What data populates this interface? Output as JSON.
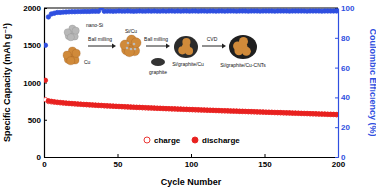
{
  "chart_data": {
    "type": "scatter",
    "x_label": "Cycle Number",
    "y_label": "Specific Capacity (mAh g⁻¹)",
    "y2_label": "Coulombic Efficiency (%)",
    "xlim": [
      0,
      200
    ],
    "xticks": [
      0,
      50,
      100,
      150,
      200
    ],
    "ylim": [
      0,
      2000
    ],
    "yticks": [
      0,
      500,
      1000,
      1500,
      2000
    ],
    "y2lim": [
      0,
      100
    ],
    "y2ticks": [
      0,
      20,
      40,
      60,
      80,
      100
    ],
    "legend": "lower center",
    "annotations": [
      "nano-Si",
      "Cu",
      "Ball milling",
      "Si/Cu",
      "Ball milling",
      "graphite",
      "Si/graphite/Cu",
      "CVD",
      "Si/graphite/Cu-CNTs"
    ],
    "x": [
      1,
      3,
      5,
      7,
      9,
      11,
      13,
      15,
      17,
      19,
      21,
      23,
      25,
      27,
      29,
      31,
      33,
      35,
      37,
      39,
      41,
      43,
      45,
      47,
      49,
      51,
      53,
      55,
      57,
      59,
      61,
      63,
      65,
      67,
      69,
      71,
      73,
      75,
      77,
      79,
      81,
      83,
      85,
      87,
      89,
      91,
      93,
      95,
      97,
      99,
      101,
      103,
      105,
      107,
      109,
      111,
      113,
      115,
      117,
      119,
      121,
      123,
      125,
      127,
      129,
      131,
      133,
      135,
      137,
      139,
      141,
      143,
      145,
      147,
      149,
      151,
      153,
      155,
      157,
      159,
      161,
      163,
      165,
      167,
      169,
      171,
      173,
      175,
      177,
      179,
      181,
      183,
      185,
      187,
      189,
      191,
      193,
      195,
      197,
      199
    ],
    "series": [
      {
        "name": "charge",
        "color": "#e8211f",
        "marker": "circle-open",
        "values": [
          770,
          745,
          740,
          735,
          731,
          727,
          723,
          720,
          717,
          714,
          711,
          708,
          706,
          703,
          701,
          698,
          696,
          693,
          691,
          689,
          686,
          684,
          682,
          680,
          678,
          676,
          674,
          672,
          670,
          668,
          666,
          664,
          663,
          661,
          659,
          657,
          656,
          654,
          652,
          651,
          649,
          647,
          646,
          644,
          643,
          641,
          640,
          638,
          637,
          635,
          634,
          632,
          631,
          629,
          628,
          626,
          625,
          624,
          622,
          621,
          619,
          618,
          617,
          615,
          614,
          613,
          611,
          610,
          609,
          607,
          606,
          605,
          603,
          602,
          601,
          599,
          598,
          597,
          595,
          594,
          593,
          591,
          590,
          589,
          587,
          586,
          585,
          583,
          582,
          581,
          579,
          578,
          577,
          575,
          574,
          573,
          571,
          570,
          569,
          567
        ]
      },
      {
        "name": "discharge",
        "color": "#e8211f",
        "marker": "circle",
        "values": [
          1030,
          755,
          748,
          742,
          737,
          733,
          729,
          725,
          722,
          719,
          716,
          713,
          710,
          707,
          705,
          702,
          700,
          697,
          695,
          693,
          690,
          688,
          686,
          684,
          682,
          680,
          678,
          676,
          674,
          672,
          670,
          668,
          667,
          665,
          663,
          661,
          660,
          658,
          656,
          655,
          653,
          651,
          650,
          648,
          647,
          645,
          644,
          642,
          641,
          639,
          638,
          636,
          635,
          633,
          632,
          630,
          629,
          628,
          626,
          625,
          623,
          622,
          621,
          619,
          618,
          617,
          615,
          614,
          613,
          611,
          610,
          609,
          607,
          606,
          605,
          603,
          602,
          601,
          599,
          598,
          597,
          595,
          594,
          593,
          591,
          590,
          589,
          587,
          586,
          585,
          583,
          582,
          581,
          579,
          578,
          577,
          575,
          574,
          573,
          571
        ]
      },
      {
        "color": "#2f4fe0",
        "marker": "circle",
        "axis": "y2",
        "values": [
          75,
          94,
          96,
          96.5,
          97,
          97,
          97.2,
          97.3,
          97.4,
          97.5,
          97.5,
          97.6,
          97.6,
          97.7,
          97.7,
          97.7,
          97.8,
          97.8,
          97.8,
          100,
          97.8,
          97.9,
          97.9,
          97.8,
          97.9,
          98,
          97.9,
          97.9,
          98,
          97.9,
          97.8,
          97.9,
          98,
          97.9,
          97.9,
          98,
          97.9,
          98,
          97.9,
          97.9,
          98,
          97.9,
          98,
          98,
          97.9,
          98,
          97.9,
          98,
          98,
          97.9,
          98,
          98,
          97.9,
          98,
          98,
          97.9,
          98,
          98,
          97.9,
          98,
          98,
          97.9,
          98,
          98,
          98,
          97.9,
          98,
          98,
          98,
          97.9,
          98,
          98,
          98,
          97.9,
          98,
          98,
          98,
          98,
          97.9,
          98,
          98,
          98,
          98,
          97.9,
          98,
          98,
          98,
          98,
          98,
          97.9,
          98,
          98,
          98,
          98,
          97.9,
          98,
          98,
          98,
          98,
          98
        ]
      }
    ]
  }
}
